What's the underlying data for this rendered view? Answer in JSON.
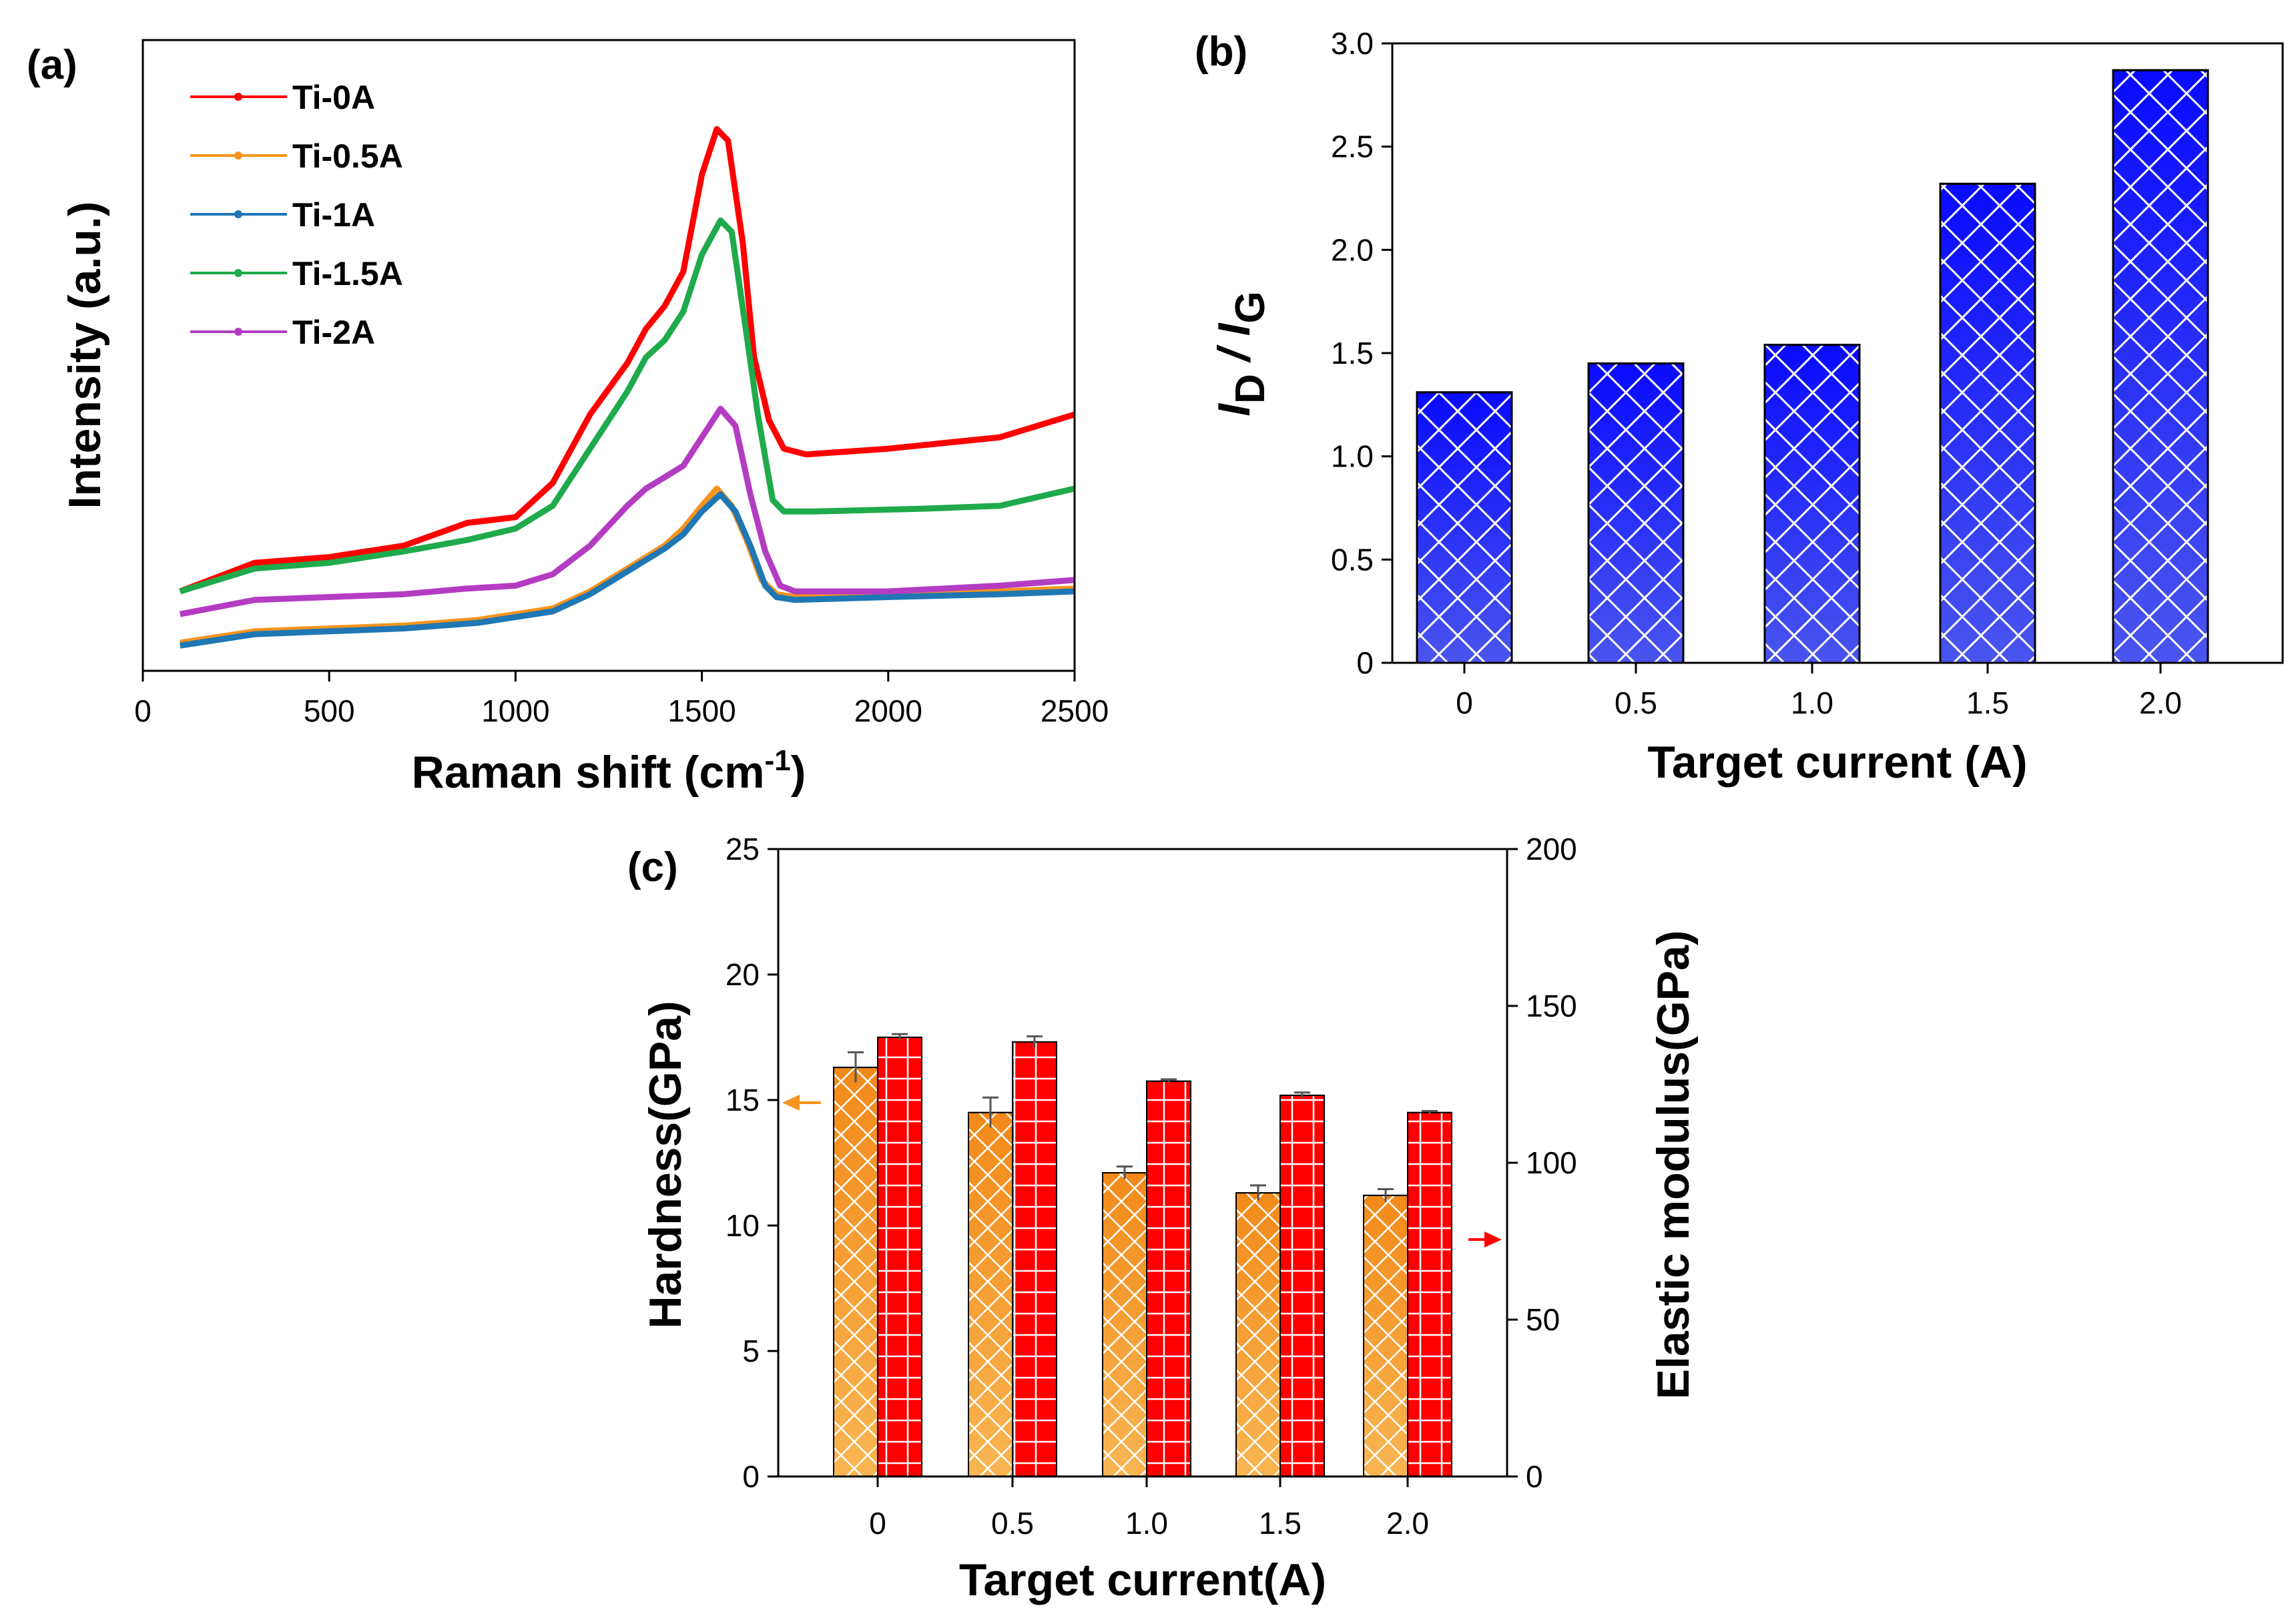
{
  "figure": {
    "panels": {
      "a": {
        "label": "(a)"
      },
      "b": {
        "label": "(b)"
      },
      "c": {
        "label": "(c)"
      }
    }
  },
  "chart_data": [
    {
      "id": "a",
      "type": "line",
      "xlabel": "Raman shift (cm",
      "xlabel_sup": "-1",
      "xlabel_suffix": ")",
      "ylabel": "Intensity (a.u.)",
      "xlim": [
        0,
        2500
      ],
      "ylim": [
        0,
        100
      ],
      "xticks": [
        0,
        500,
        1000,
        1500,
        2000,
        2500
      ],
      "xtick_labels": [
        "0",
        "500",
        "1000",
        "1500",
        "2000",
        "2500"
      ],
      "legend_position": "top-left",
      "series": [
        {
          "name": "Ti-0A",
          "color": "#ff0000",
          "points": [
            [
              100,
              11
            ],
            [
              300,
              16
            ],
            [
              500,
              17
            ],
            [
              700,
              19
            ],
            [
              870,
              23
            ],
            [
              1000,
              24
            ],
            [
              1100,
              30
            ],
            [
              1200,
              42
            ],
            [
              1300,
              51
            ],
            [
              1350,
              57
            ],
            [
              1400,
              61
            ],
            [
              1450,
              67
            ],
            [
              1500,
              84
            ],
            [
              1540,
              92
            ],
            [
              1570,
              90
            ],
            [
              1610,
              72
            ],
            [
              1640,
              52
            ],
            [
              1680,
              41
            ],
            [
              1720,
              36
            ],
            [
              1780,
              35
            ],
            [
              2000,
              36
            ],
            [
              2300,
              38
            ],
            [
              2500,
              42
            ]
          ]
        },
        {
          "name": "Ti-0.5A",
          "color": "#f7941d",
          "points": [
            [
              100,
              2
            ],
            [
              300,
              4
            ],
            [
              500,
              4.5
            ],
            [
              700,
              5
            ],
            [
              900,
              6
            ],
            [
              1100,
              8
            ],
            [
              1200,
              11
            ],
            [
              1300,
              15
            ],
            [
              1400,
              19
            ],
            [
              1450,
              22
            ],
            [
              1500,
              26
            ],
            [
              1540,
              29
            ],
            [
              1580,
              26
            ],
            [
              1620,
              20
            ],
            [
              1660,
              13
            ],
            [
              1700,
              10.5
            ],
            [
              1750,
              10
            ],
            [
              2000,
              10.5
            ],
            [
              2300,
              11
            ],
            [
              2500,
              11.5
            ]
          ]
        },
        {
          "name": "Ti-1A",
          "color": "#1f77b4",
          "points": [
            [
              100,
              1.5
            ],
            [
              300,
              3.5
            ],
            [
              500,
              4
            ],
            [
              700,
              4.5
            ],
            [
              900,
              5.5
            ],
            [
              1100,
              7.5
            ],
            [
              1200,
              10.5
            ],
            [
              1300,
              14.5
            ],
            [
              1400,
              18.5
            ],
            [
              1450,
              21
            ],
            [
              1500,
              25
            ],
            [
              1550,
              28
            ],
            [
              1590,
              25
            ],
            [
              1630,
              19
            ],
            [
              1670,
              12
            ],
            [
              1700,
              10
            ],
            [
              1750,
              9.5
            ],
            [
              2000,
              10
            ],
            [
              2300,
              10.5
            ],
            [
              2500,
              11
            ]
          ]
        },
        {
          "name": "Ti-1.5A",
          "color": "#1faa4b",
          "points": [
            [
              100,
              11
            ],
            [
              300,
              15
            ],
            [
              500,
              16
            ],
            [
              700,
              18
            ],
            [
              870,
              20
            ],
            [
              1000,
              22
            ],
            [
              1100,
              26
            ],
            [
              1200,
              36
            ],
            [
              1300,
              46
            ],
            [
              1350,
              52
            ],
            [
              1400,
              55
            ],
            [
              1450,
              60
            ],
            [
              1500,
              70
            ],
            [
              1550,
              76
            ],
            [
              1580,
              74
            ],
            [
              1620,
              56
            ],
            [
              1650,
              42
            ],
            [
              1690,
              27
            ],
            [
              1720,
              25
            ],
            [
              1800,
              25
            ],
            [
              2100,
              25.5
            ],
            [
              2300,
              26
            ],
            [
              2500,
              29
            ]
          ]
        },
        {
          "name": "Ti-2A",
          "color": "#b43cc3",
          "points": [
            [
              100,
              7
            ],
            [
              300,
              9.5
            ],
            [
              500,
              10
            ],
            [
              700,
              10.5
            ],
            [
              870,
              11.5
            ],
            [
              1000,
              12
            ],
            [
              1100,
              14
            ],
            [
              1200,
              19
            ],
            [
              1300,
              26
            ],
            [
              1350,
              29
            ],
            [
              1400,
              31
            ],
            [
              1450,
              33
            ],
            [
              1500,
              38
            ],
            [
              1550,
              43
            ],
            [
              1590,
              40
            ],
            [
              1630,
              28
            ],
            [
              1670,
              18
            ],
            [
              1710,
              12
            ],
            [
              1750,
              11
            ],
            [
              2000,
              11
            ],
            [
              2300,
              12
            ],
            [
              2500,
              13
            ]
          ]
        }
      ]
    },
    {
      "id": "b",
      "type": "bar",
      "xlabel": "Target current (A)",
      "ylabel_main": "I",
      "ylabel_sub1": "D",
      "ylabel_mid": " / I",
      "ylabel_sub2": "G",
      "categories": [
        "0",
        "0.5",
        "1.0",
        "1.5",
        "2.0"
      ],
      "values": [
        1.31,
        1.45,
        1.54,
        2.32,
        2.87
      ],
      "ylim": [
        0,
        3.0
      ],
      "yticks": [
        0,
        0.5,
        1.0,
        1.5,
        2.0,
        2.5,
        3.0
      ],
      "ytick_labels": [
        "0",
        "0.5",
        "1.0",
        "1.5",
        "2.0",
        "2.5",
        "3.0"
      ],
      "bar_color": "#1a1aff"
    },
    {
      "id": "c",
      "type": "bar",
      "xlabel": "Target current(A)",
      "ylabel_left": "Hardness(GPa)",
      "ylabel_right": "Elastic modulus(GPa)",
      "categories": [
        "0",
        "0.5",
        "1.0",
        "1.5",
        "2.0"
      ],
      "ylim_left": [
        0,
        25
      ],
      "ylim_right": [
        0,
        200
      ],
      "yticks_left": [
        0,
        5,
        10,
        15,
        20,
        25
      ],
      "ytick_labels_left": [
        "0",
        "5",
        "10",
        "15",
        "20",
        "25"
      ],
      "yticks_right": [
        0,
        50,
        100,
        150,
        200
      ],
      "ytick_labels_right": [
        "0",
        "50",
        "100",
        "150",
        "200"
      ],
      "series": [
        {
          "name": "Hardness",
          "axis": "left",
          "color": "#f7931e",
          "values": [
            16.3,
            14.5,
            12.1,
            11.3,
            11.2
          ],
          "errors": [
            0.6,
            0.6,
            0.25,
            0.3,
            0.25
          ]
        },
        {
          "name": "Elastic modulus",
          "axis": "right",
          "color": "#ff0000",
          "values": [
            140,
            138.5,
            126,
            121.5,
            116
          ],
          "errors": [
            1.0,
            1.8,
            0.6,
            0.9,
            0.5
          ]
        }
      ]
    }
  ]
}
